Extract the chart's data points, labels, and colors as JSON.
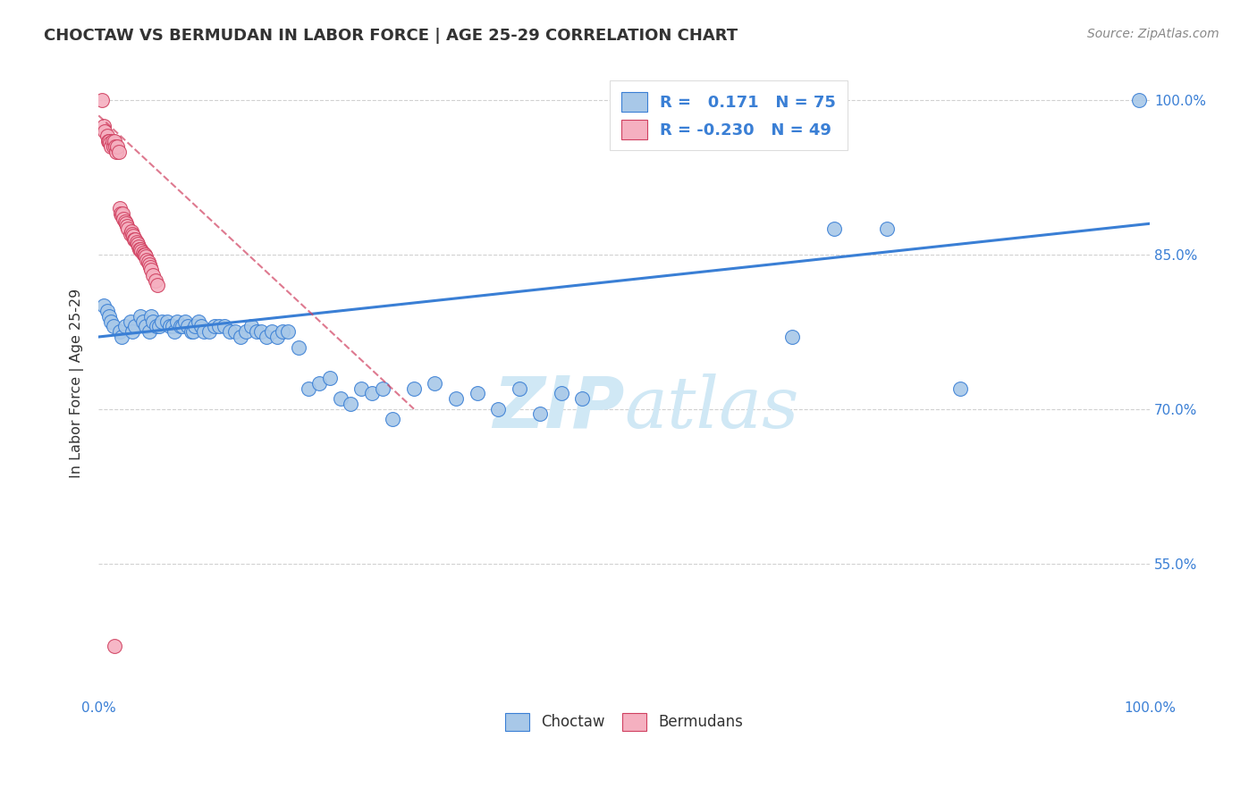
{
  "title": "CHOCTAW VS BERMUDAN IN LABOR FORCE | AGE 25-29 CORRELATION CHART",
  "source": "Source: ZipAtlas.com",
  "ylabel": "In Labor Force | Age 25-29",
  "xlim": [
    0.0,
    1.0
  ],
  "ylim": [
    0.42,
    1.03
  ],
  "x_ticks": [
    0.0,
    0.1,
    0.2,
    0.3,
    0.4,
    0.5,
    0.6,
    0.7,
    0.8,
    0.9,
    1.0
  ],
  "x_tick_labels": [
    "0.0%",
    "",
    "",
    "",
    "",
    "",
    "",
    "",
    "",
    "",
    "100.0%"
  ],
  "y_ticks_right": [
    0.55,
    0.7,
    0.85,
    1.0
  ],
  "y_tick_labels_right": [
    "55.0%",
    "70.0%",
    "85.0%",
    "100.0%"
  ],
  "legend_labels": [
    "Choctaw",
    "Bermudans"
  ],
  "r_choctaw": 0.171,
  "n_choctaw": 75,
  "r_bermudans": -0.23,
  "n_bermudans": 49,
  "choctaw_color": "#a8c8e8",
  "bermudans_color": "#f5b0c0",
  "trend_choctaw_color": "#3a7fd5",
  "trend_bermudans_color": "#d04060",
  "watermark_color": "#d0e8f5",
  "background_color": "#ffffff",
  "choctaw_x": [
    0.005,
    0.008,
    0.01,
    0.012,
    0.014,
    0.02,
    0.022,
    0.025,
    0.03,
    0.032,
    0.035,
    0.04,
    0.042,
    0.045,
    0.048,
    0.05,
    0.052,
    0.055,
    0.058,
    0.06,
    0.065,
    0.068,
    0.07,
    0.072,
    0.075,
    0.078,
    0.08,
    0.082,
    0.085,
    0.088,
    0.09,
    0.092,
    0.095,
    0.098,
    0.1,
    0.105,
    0.11,
    0.115,
    0.12,
    0.125,
    0.13,
    0.135,
    0.14,
    0.145,
    0.15,
    0.155,
    0.16,
    0.165,
    0.17,
    0.175,
    0.18,
    0.19,
    0.2,
    0.21,
    0.22,
    0.23,
    0.24,
    0.25,
    0.26,
    0.27,
    0.28,
    0.3,
    0.32,
    0.34,
    0.36,
    0.38,
    0.4,
    0.42,
    0.44,
    0.46,
    0.66,
    0.7,
    0.75,
    0.82,
    0.99
  ],
  "choctaw_y": [
    0.8,
    0.795,
    0.79,
    0.785,
    0.78,
    0.775,
    0.77,
    0.78,
    0.785,
    0.775,
    0.78,
    0.79,
    0.785,
    0.78,
    0.775,
    0.79,
    0.785,
    0.78,
    0.78,
    0.785,
    0.785,
    0.78,
    0.78,
    0.775,
    0.785,
    0.78,
    0.78,
    0.785,
    0.78,
    0.775,
    0.775,
    0.78,
    0.785,
    0.78,
    0.775,
    0.775,
    0.78,
    0.78,
    0.78,
    0.775,
    0.775,
    0.77,
    0.775,
    0.78,
    0.775,
    0.775,
    0.77,
    0.775,
    0.77,
    0.775,
    0.775,
    0.76,
    0.72,
    0.725,
    0.73,
    0.71,
    0.705,
    0.72,
    0.715,
    0.72,
    0.69,
    0.72,
    0.725,
    0.71,
    0.715,
    0.7,
    0.72,
    0.695,
    0.715,
    0.71,
    0.77,
    0.875,
    0.875,
    0.72,
    1.0
  ],
  "bermudans_x": [
    0.003,
    0.005,
    0.006,
    0.008,
    0.009,
    0.01,
    0.011,
    0.012,
    0.013,
    0.014,
    0.015,
    0.016,
    0.017,
    0.018,
    0.019,
    0.02,
    0.021,
    0.022,
    0.023,
    0.024,
    0.025,
    0.026,
    0.027,
    0.028,
    0.03,
    0.031,
    0.032,
    0.033,
    0.034,
    0.035,
    0.036,
    0.037,
    0.038,
    0.039,
    0.04,
    0.041,
    0.042,
    0.043,
    0.044,
    0.045,
    0.046,
    0.047,
    0.048,
    0.049,
    0.05,
    0.052,
    0.054,
    0.056,
    0.015
  ],
  "bermudans_y": [
    1.0,
    0.975,
    0.97,
    0.965,
    0.96,
    0.96,
    0.958,
    0.955,
    0.96,
    0.955,
    0.96,
    0.955,
    0.95,
    0.955,
    0.95,
    0.895,
    0.89,
    0.888,
    0.89,
    0.885,
    0.882,
    0.88,
    0.878,
    0.875,
    0.87,
    0.872,
    0.87,
    0.868,
    0.865,
    0.865,
    0.862,
    0.86,
    0.858,
    0.855,
    0.855,
    0.853,
    0.852,
    0.85,
    0.85,
    0.848,
    0.845,
    0.843,
    0.84,
    0.838,
    0.835,
    0.83,
    0.825,
    0.82,
    0.47
  ],
  "trend_choctaw_x_start": 0.0,
  "trend_choctaw_x_end": 1.0,
  "trend_choctaw_y_start": 0.77,
  "trend_choctaw_y_end": 0.88,
  "trend_bermudans_x_start": 0.0,
  "trend_bermudans_x_end": 0.3,
  "trend_bermudans_y_start": 0.985,
  "trend_bermudans_y_end": 0.7
}
